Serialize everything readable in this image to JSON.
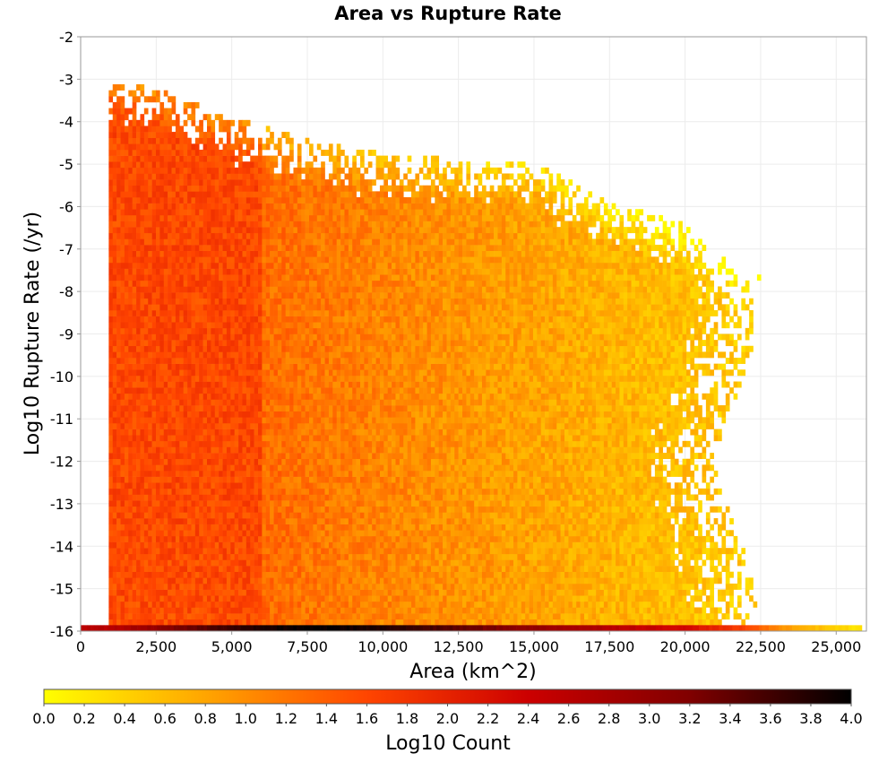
{
  "chart_data": {
    "type": "heatmap",
    "title": "Area vs Rupture Rate",
    "xlabel": "Area (km^2)",
    "ylabel": "Log10 Rupture Rate (/yr)",
    "xlim": [
      0,
      26000
    ],
    "ylim": [
      -16,
      -2
    ],
    "x_ticks": [
      0,
      2500,
      5000,
      7500,
      10000,
      12500,
      15000,
      17500,
      20000,
      22500,
      25000
    ],
    "x_tick_labels": [
      "0",
      "2,500",
      "5,000",
      "7,500",
      "10,000",
      "12,500",
      "15,000",
      "17,500",
      "20,000",
      "22,500",
      "25,000"
    ],
    "y_ticks": [
      -2,
      -3,
      -4,
      -5,
      -6,
      -7,
      -8,
      -9,
      -10,
      -11,
      -12,
      -13,
      -14,
      -15,
      -16
    ],
    "y_tick_labels": [
      "-2",
      "-3",
      "-4",
      "-5",
      "-6",
      "-7",
      "-8",
      "-9",
      "-10",
      "-11",
      "-12",
      "-13",
      "-14",
      "-15",
      "-16"
    ],
    "grid": true,
    "colorbar": {
      "label": "Log10 Count",
      "range": [
        0.0,
        4.0
      ],
      "ticks": [
        0.0,
        0.2,
        0.4,
        0.6,
        0.8,
        1.0,
        1.2,
        1.4,
        1.6,
        1.8,
        2.0,
        2.2,
        2.4,
        2.6,
        2.8,
        3.0,
        3.2,
        3.4,
        3.6,
        3.8,
        4.0
      ],
      "tick_labels": [
        "0.0",
        "0.2",
        "0.4",
        "0.6",
        "0.8",
        "1.0",
        "1.2",
        "1.4",
        "1.6",
        "1.8",
        "2.0",
        "2.2",
        "2.4",
        "2.6",
        "2.8",
        "3.0",
        "3.2",
        "3.4",
        "3.6",
        "3.8",
        "4.0"
      ],
      "colormap": [
        "#ffff00",
        "#ffa500",
        "#ff4500",
        "#cc0000",
        "#800000",
        "#000000"
      ]
    },
    "density_envelope": {
      "x_start": 930,
      "bin_width_x": 130,
      "bin_height_y": 0.14,
      "top_edge": [
        {
          "x": 930,
          "y": -3.0
        },
        {
          "x": 2500,
          "y": -3.3
        },
        {
          "x": 5000,
          "y": -4.0
        },
        {
          "x": 7500,
          "y": -4.5
        },
        {
          "x": 10000,
          "y": -4.8
        },
        {
          "x": 12500,
          "y": -5.0
        },
        {
          "x": 15000,
          "y": -5.0
        },
        {
          "x": 17500,
          "y": -6.0
        },
        {
          "x": 20000,
          "y": -6.5
        },
        {
          "x": 21500,
          "y": -7.5
        },
        {
          "x": 22600,
          "y": -7.7
        }
      ],
      "right_edge": [
        {
          "y": -8,
          "x": 22500
        },
        {
          "y": -10,
          "x": 22000
        },
        {
          "y": -12,
          "x": 20800
        },
        {
          "y": -14,
          "x": 21800
        },
        {
          "y": -15.3,
          "x": 22300
        }
      ],
      "peak_log10_count": [
        {
          "x": 930,
          "y": -5.5,
          "value": 1.6
        },
        {
          "x": 4500,
          "y": -9.0,
          "value": 1.5
        },
        {
          "x": 10000,
          "y": -11.0,
          "value": 1.2
        },
        {
          "x": 15000,
          "y": -12.0,
          "value": 1.0
        },
        {
          "x": 20000,
          "y": -12.0,
          "value": 0.5
        }
      ]
    },
    "floor_row": {
      "y": -16,
      "x_min": 0,
      "x_max": 25800,
      "profile": [
        {
          "x": 0,
          "value": 2.6
        },
        {
          "x": 930,
          "value": 2.6
        },
        {
          "x": 5000,
          "value": 3.7
        },
        {
          "x": 7500,
          "value": 4.0
        },
        {
          "x": 10000,
          "value": 3.8
        },
        {
          "x": 15000,
          "value": 3.0
        },
        {
          "x": 20000,
          "value": 2.3
        },
        {
          "x": 22000,
          "value": 1.6
        },
        {
          "x": 23500,
          "value": 0.8
        },
        {
          "x": 25800,
          "value": 0.2
        }
      ]
    }
  }
}
